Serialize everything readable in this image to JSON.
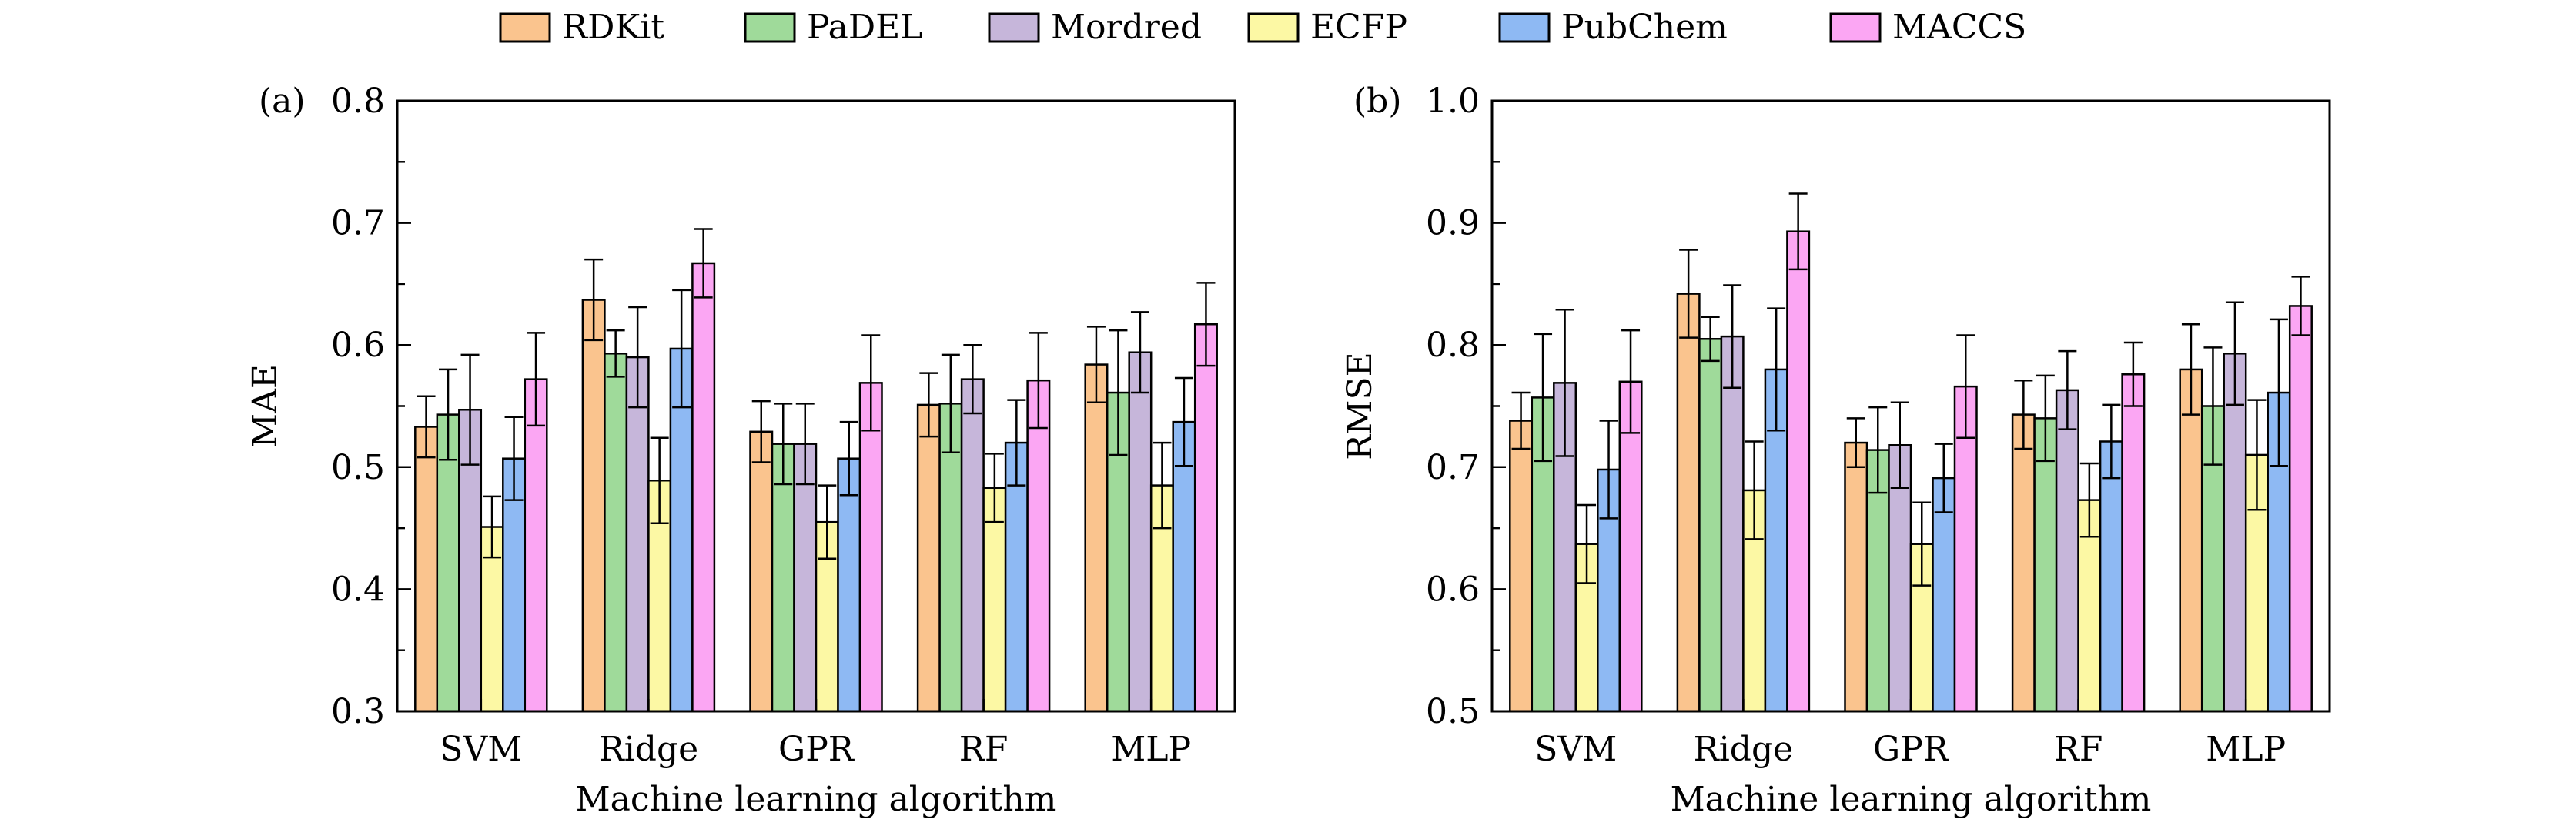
{
  "legend": [
    {
      "name": "RDKit",
      "color": "#FAC48E"
    },
    {
      "name": "PaDEL",
      "color": "#9FDA9A"
    },
    {
      "name": "Mordred",
      "color": "#C6B6DA"
    },
    {
      "name": "ECFP",
      "color": "#FCF8A4"
    },
    {
      "name": "PubChem",
      "color": "#8EB9F3"
    },
    {
      "name": "MACCS",
      "color": "#FBA6F3"
    }
  ],
  "chart_data": [
    {
      "type": "bar",
      "panel_label": "(a)",
      "xlabel": "Machine learning algorithm",
      "ylabel": "MAE",
      "categories": [
        "SVM",
        "Ridge",
        "GPR",
        "RF",
        "MLP"
      ],
      "ylim": [
        0.3,
        0.8
      ],
      "yticks": [
        "0.3",
        "0.4",
        "0.5",
        "0.6",
        "0.7",
        "0.8"
      ],
      "series": [
        {
          "name": "RDKit",
          "values": [
            0.533,
            0.637,
            0.529,
            0.551,
            0.584
          ],
          "errors": [
            0.025,
            0.033,
            0.025,
            0.026,
            0.031
          ]
        },
        {
          "name": "PaDEL",
          "values": [
            0.543,
            0.593,
            0.519,
            0.552,
            0.561
          ],
          "errors": [
            0.037,
            0.019,
            0.033,
            0.04,
            0.051
          ]
        },
        {
          "name": "Mordred",
          "values": [
            0.547,
            0.59,
            0.519,
            0.572,
            0.594
          ],
          "errors": [
            0.045,
            0.041,
            0.033,
            0.028,
            0.033
          ]
        },
        {
          "name": "ECFP",
          "values": [
            0.451,
            0.489,
            0.455,
            0.483,
            0.485
          ],
          "errors": [
            0.025,
            0.035,
            0.03,
            0.028,
            0.035
          ]
        },
        {
          "name": "PubChem",
          "values": [
            0.507,
            0.597,
            0.507,
            0.52,
            0.537
          ],
          "errors": [
            0.034,
            0.048,
            0.03,
            0.035,
            0.036
          ]
        },
        {
          "name": "MACCS",
          "values": [
            0.572,
            0.667,
            0.569,
            0.571,
            0.617
          ],
          "errors": [
            0.038,
            0.028,
            0.039,
            0.039,
            0.034
          ]
        }
      ]
    },
    {
      "type": "bar",
      "panel_label": "(b)",
      "xlabel": "Machine learning algorithm",
      "ylabel": "RMSE",
      "categories": [
        "SVM",
        "Ridge",
        "GPR",
        "RF",
        "MLP"
      ],
      "ylim": [
        0.5,
        1.0
      ],
      "yticks": [
        "0.5",
        "0.6",
        "0.7",
        "0.8",
        "0.9",
        "1.0"
      ],
      "series": [
        {
          "name": "RDKit",
          "values": [
            0.738,
            0.842,
            0.72,
            0.743,
            0.78
          ],
          "errors": [
            0.023,
            0.036,
            0.02,
            0.028,
            0.037
          ]
        },
        {
          "name": "PaDEL",
          "values": [
            0.757,
            0.805,
            0.714,
            0.74,
            0.75
          ],
          "errors": [
            0.052,
            0.018,
            0.035,
            0.035,
            0.048
          ]
        },
        {
          "name": "Mordred",
          "values": [
            0.769,
            0.807,
            0.718,
            0.763,
            0.793
          ],
          "errors": [
            0.06,
            0.042,
            0.035,
            0.032,
            0.042
          ]
        },
        {
          "name": "ECFP",
          "values": [
            0.637,
            0.681,
            0.637,
            0.673,
            0.71
          ],
          "errors": [
            0.032,
            0.04,
            0.034,
            0.03,
            0.045
          ]
        },
        {
          "name": "PubChem",
          "values": [
            0.698,
            0.78,
            0.691,
            0.721,
            0.761
          ],
          "errors": [
            0.04,
            0.05,
            0.028,
            0.03,
            0.06
          ]
        },
        {
          "name": "MACCS",
          "values": [
            0.77,
            0.893,
            0.766,
            0.776,
            0.832
          ],
          "errors": [
            0.042,
            0.031,
            0.042,
            0.026,
            0.024
          ]
        }
      ]
    }
  ]
}
